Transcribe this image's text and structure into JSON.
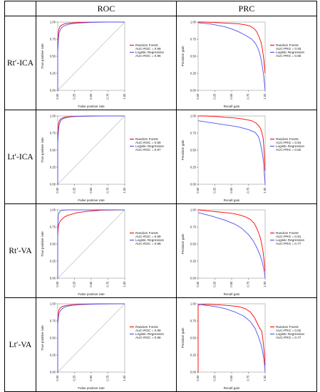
{
  "table": {
    "header_blank": "",
    "header_roc": "ROC",
    "header_prc": "PRC"
  },
  "rows": [
    {
      "label": "Rt′-ICA"
    },
    {
      "label": "Lt′-ICA"
    },
    {
      "label": "Rt′-VA"
    },
    {
      "label": "Lt′-VA"
    }
  ],
  "colors": {
    "rf": "#ff0000",
    "lr": "#5050ee",
    "diag": "#bdbdbd",
    "frame": "#9a9a9a"
  },
  "chart_data": [
    {
      "panel": "Rt′-ICA ROC",
      "type": "line",
      "xlabel": "False positive rate",
      "ylabel": "True positive rate",
      "xlim": [
        0,
        1
      ],
      "ylim": [
        0,
        1
      ],
      "diagonal": true,
      "xticks": [
        "0.00",
        "0.25",
        "0.50",
        "0.75",
        "1.00"
      ],
      "yticks": [
        "0.00",
        "0.25",
        "0.50",
        "0.75",
        "1.00"
      ],
      "legend_position": "right",
      "series": [
        {
          "name": "Random Forest",
          "metric": "AUC-ROC = 0.99",
          "color": "#ff0000",
          "x": [
            0,
            0,
            0.005,
            0.01,
            0.02,
            0.03,
            0.05,
            0.08,
            0.12,
            0.2,
            0.35,
            0.6,
            1.0
          ],
          "y": [
            0,
            0.7,
            0.8,
            0.86,
            0.9,
            0.93,
            0.95,
            0.965,
            0.978,
            0.988,
            0.995,
            0.999,
            1.0
          ]
        },
        {
          "name": "Logistic Regression",
          "metric": "AUC-ROC = 0.96",
          "color": "#5050ee",
          "x": [
            0,
            0,
            0.01,
            0.02,
            0.04,
            0.06,
            0.09,
            0.14,
            0.2,
            0.3,
            0.5,
            0.75,
            1.0
          ],
          "y": [
            0,
            0.55,
            0.75,
            0.84,
            0.89,
            0.92,
            0.94,
            0.96,
            0.975,
            0.985,
            0.995,
            1.0,
            1.0
          ]
        }
      ]
    },
    {
      "panel": "Rt′-ICA PRC",
      "type": "line",
      "xlabel": "Recall gain",
      "ylabel": "Precision gain",
      "xlim": [
        0,
        1
      ],
      "ylim": [
        0,
        1
      ],
      "diagonal": false,
      "xticks": [
        "0.00",
        "0.25",
        "0.50",
        "0.75",
        "1.00"
      ],
      "yticks": [
        "0.00",
        "0.25",
        "0.50",
        "0.75",
        "1.00"
      ],
      "legend_position": "right",
      "series": [
        {
          "name": "Random Forest",
          "metric": "AUC-PRG = 0.93",
          "color": "#ff0000",
          "x": [
            0,
            0.1,
            0.2,
            0.3,
            0.4,
            0.5,
            0.6,
            0.7,
            0.78,
            0.84,
            0.88,
            0.91,
            0.94,
            0.96,
            0.98,
            0.99,
            1.0
          ],
          "y": [
            1.0,
            1.0,
            0.995,
            0.99,
            0.985,
            0.98,
            0.975,
            0.96,
            0.94,
            0.9,
            0.85,
            0.78,
            0.7,
            0.6,
            0.45,
            0.35,
            0.25
          ]
        },
        {
          "name": "Logistic Regression",
          "metric": "AUC-PRG = 0.85",
          "color": "#5050ee",
          "x": [
            0,
            0.2,
            0.4,
            0.5,
            0.6,
            0.7,
            0.8,
            0.86,
            0.9,
            0.93,
            0.95,
            0.97,
            0.98,
            0.99,
            1.0
          ],
          "y": [
            0.99,
            0.97,
            0.93,
            0.9,
            0.86,
            0.81,
            0.75,
            0.68,
            0.6,
            0.5,
            0.4,
            0.28,
            0.2,
            0.1,
            0.0
          ]
        }
      ]
    },
    {
      "panel": "Lt′-ICA ROC",
      "type": "line",
      "xlabel": "False positive rate",
      "ylabel": "True positive rate",
      "xlim": [
        0,
        1
      ],
      "ylim": [
        0,
        1
      ],
      "diagonal": true,
      "xticks": [
        "0.00",
        "0.25",
        "0.50",
        "0.75",
        "1.00"
      ],
      "yticks": [
        "0.00",
        "0.25",
        "0.50",
        "0.75",
        "1.00"
      ],
      "legend_position": "right",
      "series": [
        {
          "name": "Random Forest",
          "metric": "AUC-ROC = 0.99",
          "color": "#ff0000",
          "x": [
            0,
            0,
            0.005,
            0.01,
            0.02,
            0.03,
            0.05,
            0.08,
            0.12,
            0.2,
            0.35,
            0.6,
            1.0
          ],
          "y": [
            0,
            0.72,
            0.82,
            0.88,
            0.92,
            0.94,
            0.96,
            0.975,
            0.985,
            0.992,
            0.997,
            1.0,
            1.0
          ]
        },
        {
          "name": "Logistic Regression",
          "metric": "AUC-ROC = 0.97",
          "color": "#5050ee",
          "x": [
            0,
            0,
            0.01,
            0.02,
            0.035,
            0.05,
            0.08,
            0.12,
            0.18,
            0.28,
            0.45,
            0.7,
            1.0
          ],
          "y": [
            0,
            0.6,
            0.78,
            0.86,
            0.91,
            0.94,
            0.96,
            0.975,
            0.985,
            0.993,
            0.998,
            1.0,
            1.0
          ]
        }
      ]
    },
    {
      "panel": "Lt′-ICA PRC",
      "type": "line",
      "xlabel": "Recall gain",
      "ylabel": "Precision gain",
      "xlim": [
        0,
        1
      ],
      "ylim": [
        0,
        1
      ],
      "diagonal": false,
      "xticks": [
        "0.00",
        "0.25",
        "0.50",
        "0.75",
        "1.00"
      ],
      "yticks": [
        "0.00",
        "0.25",
        "0.50",
        "0.75",
        "1.00"
      ],
      "legend_position": "right",
      "series": [
        {
          "name": "Random Forest",
          "metric": "AUC-PRG = 0.94",
          "color": "#ff0000",
          "x": [
            0,
            0.1,
            0.2,
            0.3,
            0.4,
            0.5,
            0.6,
            0.7,
            0.8,
            0.86,
            0.9,
            0.93,
            0.95,
            0.97,
            0.98,
            0.99,
            1.0
          ],
          "y": [
            1.0,
            1.0,
            0.995,
            0.99,
            0.98,
            0.975,
            0.965,
            0.95,
            0.93,
            0.9,
            0.86,
            0.82,
            0.76,
            0.68,
            0.55,
            0.4,
            0.2
          ]
        },
        {
          "name": "Logistic Regression",
          "metric": "AUC-PRG = 0.82",
          "color": "#5050ee",
          "x": [
            0,
            0.2,
            0.4,
            0.6,
            0.75,
            0.85,
            0.9,
            0.93,
            0.95,
            0.97,
            0.98,
            0.99,
            1.0
          ],
          "y": [
            0.93,
            0.9,
            0.87,
            0.84,
            0.8,
            0.76,
            0.7,
            0.6,
            0.5,
            0.38,
            0.28,
            0.12,
            0.0
          ]
        }
      ]
    },
    {
      "panel": "Rt′-VA ROC",
      "type": "line",
      "xlabel": "False positive rate",
      "ylabel": "True positive rate",
      "xlim": [
        0,
        1
      ],
      "ylim": [
        0,
        1
      ],
      "diagonal": true,
      "xticks": [
        "0.00",
        "0.25",
        "0.50",
        "0.75",
        "1.00"
      ],
      "yticks": [
        "0.00",
        "0.25",
        "0.50",
        "0.75",
        "1.00"
      ],
      "legend_position": "right",
      "series": [
        {
          "name": "Random Forest",
          "metric": "AUC-ROC = 0.99",
          "color": "#ff0000",
          "x": [
            0,
            0,
            0.005,
            0.01,
            0.02,
            0.04,
            0.07,
            0.1,
            0.15,
            0.22,
            0.3,
            0.45,
            0.65,
            1.0
          ],
          "y": [
            0,
            0.6,
            0.7,
            0.76,
            0.8,
            0.84,
            0.87,
            0.895,
            0.92,
            0.94,
            0.96,
            0.98,
            0.995,
            1.0
          ]
        },
        {
          "name": "Logistic Regression",
          "metric": "AUC-ROC = 0.96",
          "color": "#5050ee",
          "x": [
            0,
            0,
            0.005,
            0.01,
            0.02,
            0.035,
            0.05,
            0.08,
            0.15,
            0.3,
            0.6,
            1.0
          ],
          "y": [
            0,
            0.7,
            0.85,
            0.92,
            0.96,
            0.98,
            0.99,
            0.995,
            1.0,
            1.0,
            1.0,
            1.0
          ]
        }
      ]
    },
    {
      "panel": "Rt′-VA PRC",
      "type": "line",
      "xlabel": "Recall gain",
      "ylabel": "Precision gain",
      "xlim": [
        0,
        1
      ],
      "ylim": [
        0,
        1
      ],
      "diagonal": false,
      "xticks": [
        "0.00",
        "0.25",
        "0.50",
        "0.75",
        "1.00"
      ],
      "yticks": [
        "0.00",
        "0.25",
        "0.50",
        "0.75",
        "1.00"
      ],
      "legend_position": "right",
      "series": [
        {
          "name": "Random Forest",
          "metric": "AUC-PRG = 0.91",
          "color": "#ff0000",
          "x": [
            0,
            0.1,
            0.2,
            0.3,
            0.4,
            0.5,
            0.6,
            0.7,
            0.78,
            0.84,
            0.88,
            0.92,
            0.95,
            0.97,
            0.99,
            1.0
          ],
          "y": [
            1.0,
            0.99,
            0.98,
            0.97,
            0.96,
            0.95,
            0.93,
            0.9,
            0.86,
            0.8,
            0.72,
            0.62,
            0.5,
            0.38,
            0.2,
            0.1
          ]
        },
        {
          "name": "Logistic Regression",
          "metric": "AUC-PRG = 0.77",
          "color": "#5050ee",
          "x": [
            0,
            0.2,
            0.4,
            0.55,
            0.65,
            0.75,
            0.82,
            0.88,
            0.92,
            0.95,
            0.97,
            0.99,
            1.0
          ],
          "y": [
            0.96,
            0.91,
            0.85,
            0.79,
            0.73,
            0.64,
            0.55,
            0.44,
            0.35,
            0.26,
            0.18,
            0.08,
            0.0
          ]
        }
      ]
    },
    {
      "panel": "Lt′-VA ROC",
      "type": "line",
      "xlabel": "False positive rate",
      "ylabel": "True positive rate",
      "xlim": [
        0,
        1
      ],
      "ylim": [
        0,
        1
      ],
      "diagonal": true,
      "xticks": [
        "0.00",
        "0.25",
        "0.50",
        "0.75",
        "1.00"
      ],
      "yticks": [
        "0.00",
        "0.25",
        "0.50",
        "0.75",
        "1.00"
      ],
      "legend_position": "right",
      "series": [
        {
          "name": "Random Forest",
          "metric": "AUC-ROC = 0.99",
          "color": "#ff0000",
          "x": [
            0,
            0,
            0.005,
            0.01,
            0.02,
            0.04,
            0.07,
            0.12,
            0.2,
            0.35,
            0.6,
            1.0
          ],
          "y": [
            0,
            0.75,
            0.84,
            0.88,
            0.91,
            0.94,
            0.96,
            0.975,
            0.985,
            0.993,
            0.998,
            1.0
          ]
        },
        {
          "name": "Logistic Regression",
          "metric": "AUC-ROC = 0.98",
          "color": "#5050ee",
          "x": [
            0,
            0,
            0.01,
            0.02,
            0.04,
            0.07,
            0.1,
            0.15,
            0.22,
            0.35,
            0.55,
            0.8,
            1.0
          ],
          "y": [
            0,
            0.7,
            0.8,
            0.86,
            0.9,
            0.93,
            0.95,
            0.965,
            0.978,
            0.988,
            0.996,
            1.0,
            1.0
          ]
        }
      ]
    },
    {
      "panel": "Lt′-VA PRC",
      "type": "line",
      "xlabel": "Recall gain",
      "ylabel": "Precision gain",
      "xlim": [
        0,
        1
      ],
      "ylim": [
        0,
        1
      ],
      "diagonal": false,
      "xticks": [
        "0.00",
        "0.25",
        "0.50",
        "0.75",
        "1.00"
      ],
      "yticks": [
        "0.00",
        "0.25",
        "0.50",
        "0.75",
        "1.00"
      ],
      "legend_position": "right",
      "series": [
        {
          "name": "Random Forest",
          "metric": "AUC-PRG = 0.82",
          "color": "#ff0000",
          "x": [
            0,
            0,
            0.05,
            0.15,
            0.3,
            0.45,
            0.6,
            0.7,
            0.78,
            0.84,
            0.88,
            0.92,
            0.95,
            0.97,
            0.99,
            1.0
          ],
          "y": [
            0,
            0.98,
            0.99,
            0.99,
            0.985,
            0.975,
            0.96,
            0.93,
            0.88,
            0.8,
            0.72,
            0.64,
            0.6,
            0.45,
            0.25,
            0.1
          ]
        },
        {
          "name": "Logistic Regression",
          "metric": "AUC-PRG = 0.77",
          "color": "#5050ee",
          "x": [
            0,
            0.1,
            0.25,
            0.4,
            0.55,
            0.68,
            0.78,
            0.85,
            0.9,
            0.94,
            0.97,
            0.99,
            1.0
          ],
          "y": [
            0.99,
            0.98,
            0.96,
            0.93,
            0.88,
            0.82,
            0.74,
            0.64,
            0.52,
            0.4,
            0.26,
            0.12,
            0.0
          ]
        }
      ]
    }
  ]
}
